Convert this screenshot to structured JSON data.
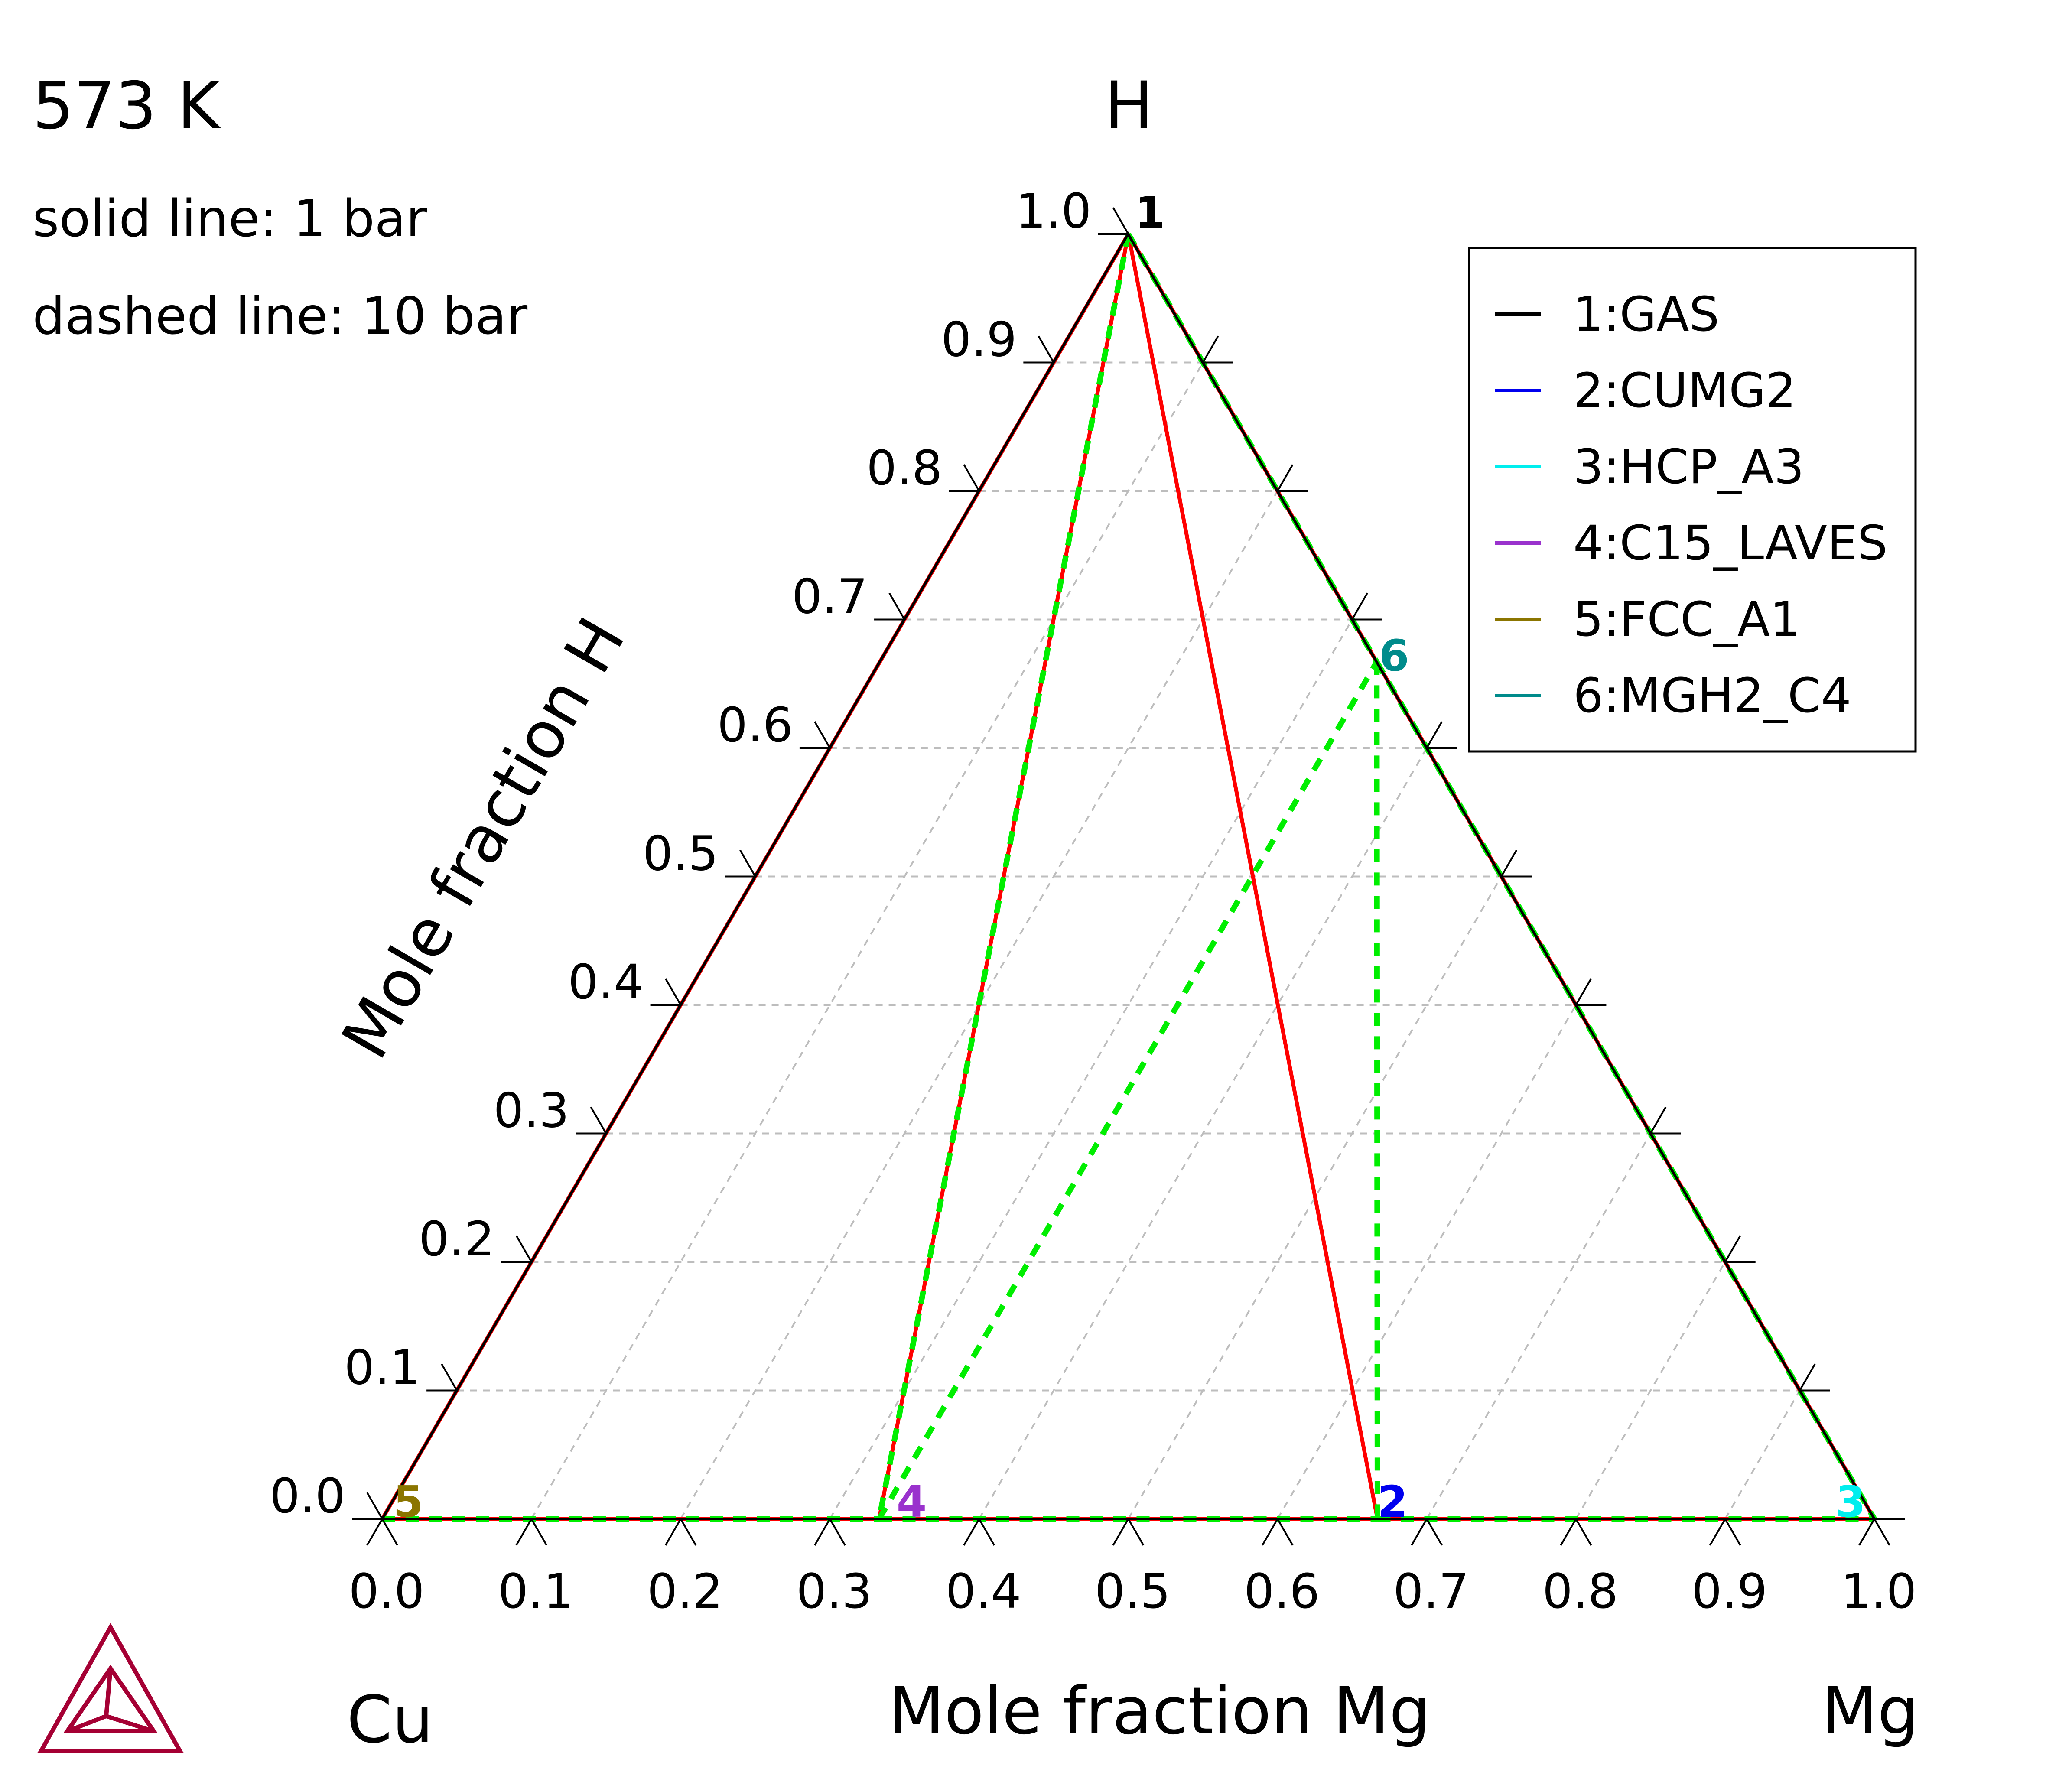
{
  "header": {
    "temperature": "573 K",
    "solid_note": "solid line:   1 bar",
    "dashed_note": "dashed line: 10 bar"
  },
  "chart_data": {
    "type": "ternary",
    "vertices": {
      "left": "Cu",
      "right": "Mg",
      "top": "H"
    },
    "xlabel": "Mole fraction Mg",
    "ylabel": "Mole fraction H",
    "bottom_ticks": [
      "0.0",
      "0.1",
      "0.2",
      "0.3",
      "0.4",
      "0.5",
      "0.6",
      "0.7",
      "0.8",
      "0.9",
      "1.0"
    ],
    "left_ticks": [
      "0.0",
      "0.1",
      "0.2",
      "0.3",
      "0.4",
      "0.5",
      "0.6",
      "0.7",
      "0.8",
      "0.9",
      "1.0"
    ],
    "grid": true,
    "legend_position": "top-right",
    "legend": [
      {
        "label": "1:GAS",
        "color": "#000000"
      },
      {
        "label": "2:CUMG2",
        "color": "#0000ee"
      },
      {
        "label": "3:HCP_A3",
        "color": "#00eeee"
      },
      {
        "label": "4:C15_LAVES",
        "color": "#9a32cd"
      },
      {
        "label": "5:FCC_A1",
        "color": "#8b7500"
      },
      {
        "label": "6:MGH2_C4",
        "color": "#008b8b"
      }
    ],
    "phase_points": [
      {
        "label": "1",
        "mg": 0.0,
        "h": 1.0,
        "color": "#000000"
      },
      {
        "label": "2",
        "mg": 0.667,
        "h": 0.0,
        "color": "#0000ee"
      },
      {
        "label": "3",
        "mg": 1.0,
        "h": 0.0,
        "color": "#00eeee"
      },
      {
        "label": "4",
        "mg": 0.333,
        "h": 0.0,
        "color": "#9a32cd"
      },
      {
        "label": "5",
        "mg": 0.0,
        "h": 0.0,
        "color": "#8b7500"
      },
      {
        "label": "6",
        "mg": 0.333,
        "h": 0.667,
        "color": "#008b8b"
      }
    ],
    "series": [
      {
        "style": "solid",
        "color": "#ff0000",
        "segments": [
          [
            [
              0.0,
              1.0
            ],
            [
              0.0,
              0.0
            ]
          ],
          [
            [
              0.0,
              0.0
            ],
            [
              0.333,
              0.0
            ]
          ],
          [
            [
              0.0,
              1.0
            ],
            [
              0.333,
              0.0
            ]
          ],
          [
            [
              0.333,
              0.0
            ],
            [
              0.667,
              0.0
            ]
          ],
          [
            [
              0.0,
              1.0
            ],
            [
              0.667,
              0.0
            ]
          ],
          [
            [
              0.667,
              0.0
            ],
            [
              1.0,
              0.0
            ]
          ],
          [
            [
              0.0,
              1.0
            ],
            [
              1.0,
              0.0
            ]
          ]
        ]
      },
      {
        "style": "dashed",
        "color": "#00ee00",
        "segments": [
          [
            [
              0.0,
              1.0
            ],
            [
              0.333,
              0.0
            ]
          ],
          [
            [
              0.333,
              0.0
            ],
            [
              0.333,
              0.667
            ]
          ],
          [
            [
              0.0,
              0.0
            ],
            [
              0.333,
              0.0
            ]
          ],
          [
            [
              0.333,
              0.0
            ],
            [
              0.667,
              0.0
            ]
          ],
          [
            [
              0.333,
              0.667
            ],
            [
              0.667,
              0.0
            ]
          ],
          [
            [
              0.0,
              1.0
            ],
            [
              0.333,
              0.667
            ]
          ],
          [
            [
              0.333,
              0.667
            ],
            [
              1.0,
              0.0
            ]
          ],
          [
            [
              0.667,
              0.0
            ],
            [
              1.0,
              0.0
            ]
          ]
        ]
      }
    ]
  }
}
